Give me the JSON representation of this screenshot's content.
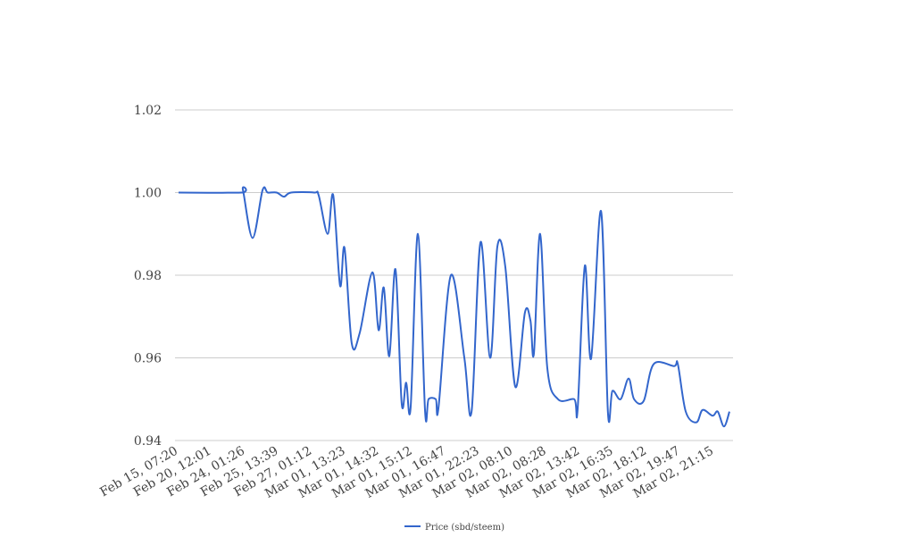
{
  "chart_data": {
    "type": "line",
    "title": "",
    "xlabel": "",
    "ylabel": "",
    "ylim": [
      0.94,
      1.02
    ],
    "yticks": [
      "0.94",
      "0.96",
      "0.98",
      "1.00",
      "1.02"
    ],
    "ytick_values": [
      0.94,
      0.96,
      0.98,
      1.0,
      1.02
    ],
    "grid": true,
    "legend_position": "bottom",
    "x_categories": [
      "Feb 15, 07:20",
      "Feb 20, 12:01",
      "Feb 24, 01:26",
      "Feb 25, 13:39",
      "Feb 27, 01:12",
      "Mar 01, 13:23",
      "Mar 01, 14:32",
      "Mar 01, 15:12",
      "Mar 01, 16:47",
      "Mar 01, 22:23",
      "Mar 02, 08:10",
      "Mar 02, 08:28",
      "Mar 02, 13:42",
      "Mar 02, 16:35",
      "Mar 02, 18:12",
      "Mar 02, 19:47",
      "Mar 02, 21:15"
    ],
    "series": [
      {
        "name": "Price (sbd/steem)",
        "color": "#3366cc",
        "points": [
          [
            0,
            1.0
          ],
          [
            1.82,
            1.0
          ],
          [
            1.87,
            1.0006
          ],
          [
            2.15,
            0.989
          ],
          [
            2.44,
            1.0006
          ],
          [
            2.59,
            1.0
          ],
          [
            2.85,
            1.0
          ],
          [
            3.06,
            0.999
          ],
          [
            3.27,
            1.0
          ],
          [
            3.94,
            1.0
          ],
          [
            4.07,
            0.9993
          ],
          [
            4.33,
            0.99
          ],
          [
            4.49,
            0.9994
          ],
          [
            4.69,
            0.9775
          ],
          [
            4.82,
            0.9866
          ],
          [
            5.03,
            0.9635
          ],
          [
            5.26,
            0.966
          ],
          [
            5.63,
            0.9807
          ],
          [
            5.81,
            0.9667
          ],
          [
            5.96,
            0.977
          ],
          [
            6.12,
            0.9604
          ],
          [
            6.3,
            0.9814
          ],
          [
            6.48,
            0.949
          ],
          [
            6.61,
            0.954
          ],
          [
            6.74,
            0.948
          ],
          [
            6.95,
            0.99
          ],
          [
            7.16,
            0.947
          ],
          [
            7.26,
            0.95
          ],
          [
            7.47,
            0.95
          ],
          [
            7.55,
            0.948
          ],
          [
            7.91,
            0.98
          ],
          [
            8.3,
            0.96
          ],
          [
            8.51,
            0.947
          ],
          [
            8.77,
            0.988
          ],
          [
            9.05,
            0.96
          ],
          [
            9.26,
            0.987
          ],
          [
            9.49,
            0.982
          ],
          [
            9.78,
            0.953
          ],
          [
            10.06,
            0.971
          ],
          [
            10.22,
            0.969
          ],
          [
            10.32,
            0.961
          ],
          [
            10.5,
            0.99
          ],
          [
            10.71,
            0.9575
          ],
          [
            11.02,
            0.95
          ],
          [
            11.49,
            0.95
          ],
          [
            11.59,
            0.9475
          ],
          [
            11.8,
            0.9823
          ],
          [
            11.98,
            0.9598
          ],
          [
            12.27,
            0.9955
          ],
          [
            12.47,
            0.9468
          ],
          [
            12.6,
            0.952
          ],
          [
            12.84,
            0.95
          ],
          [
            13.07,
            0.955
          ],
          [
            13.23,
            0.95
          ],
          [
            13.51,
            0.9496
          ],
          [
            13.8,
            0.9585
          ],
          [
            14.39,
            0.958
          ],
          [
            14.5,
            0.9585
          ],
          [
            14.73,
            0.947
          ],
          [
            15.04,
            0.9444
          ],
          [
            15.22,
            0.9474
          ],
          [
            15.51,
            0.946
          ],
          [
            15.66,
            0.947
          ],
          [
            15.84,
            0.9434
          ],
          [
            16,
            0.947
          ]
        ]
      }
    ]
  }
}
